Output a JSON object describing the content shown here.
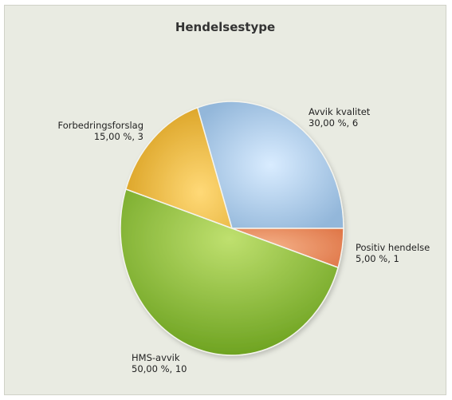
{
  "chart_data": {
    "type": "pie",
    "title": "Hendelsestype",
    "slices": [
      {
        "name": "Avvik kvalitet",
        "value": 6,
        "percent_label": "30,00 %, 6",
        "color": "#a7c6e3"
      },
      {
        "name": "Positiv hendelse",
        "value": 1,
        "percent_label": "5,00 %, 1",
        "color": "#ea9363"
      },
      {
        "name": "HMS-avvik",
        "value": 10,
        "percent_label": "50,00 %, 10",
        "color": "#8fc23c"
      },
      {
        "name": "Forbedringsforslag",
        "value": 3,
        "percent_label": "15,00 %, 3",
        "color": "#e9b13b"
      }
    ],
    "legend": "none",
    "background_color": "#e9ebe2"
  }
}
